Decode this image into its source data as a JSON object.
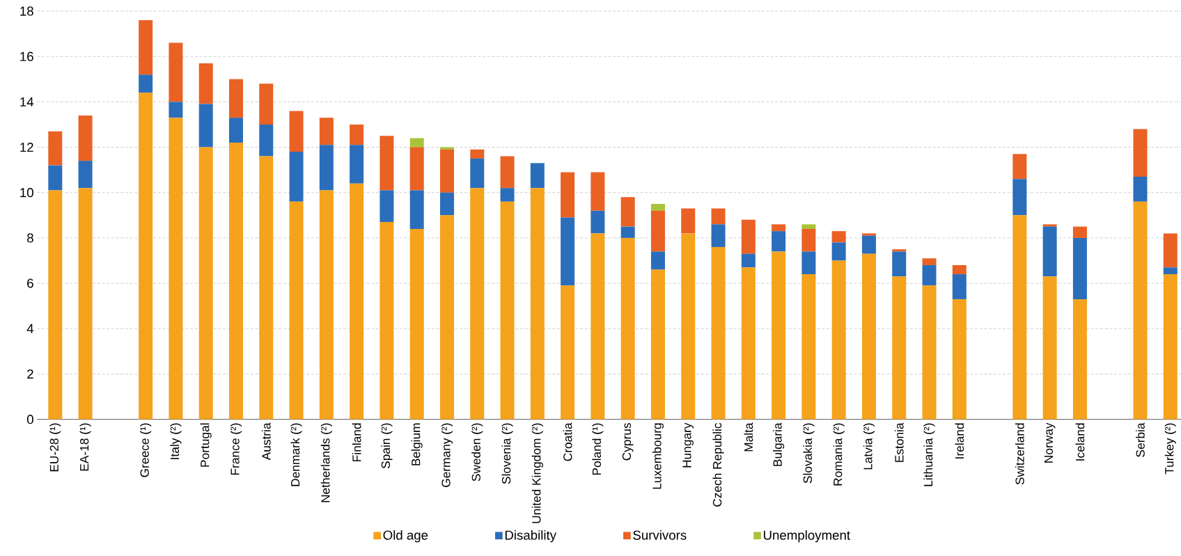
{
  "chart_data": {
    "type": "bar",
    "stacked": true,
    "categories": [
      "EU-28 (¹)",
      "EA-18 (¹)",
      null,
      "Greece (¹)",
      "Italy (²)",
      "Portugal",
      "France (²)",
      "Austria",
      "Denmark (²)",
      "Netherlands (²)",
      "Finland",
      "Spain (²)",
      "Belgium",
      "Germany (²)",
      "Sweden (²)",
      "Slovenia (²)",
      "United Kingdom (²)",
      "Croatia",
      "Poland (¹)",
      "Cyprus",
      "Luxembourg",
      "Hungary",
      "Czech Republic",
      "Malta",
      "Bulgaria",
      "Slovakia (²)",
      "Romania (²)",
      "Latvia (²)",
      "Estonia",
      "Lithuania (²)",
      "Ireland",
      null,
      "Switzerland",
      "Norway",
      "Iceland",
      null,
      "Serbia",
      "Turkey (²)"
    ],
    "series": [
      {
        "name": "Old age",
        "color": "#f5a21c",
        "values": [
          10.1,
          10.2,
          null,
          14.4,
          13.3,
          12.0,
          12.2,
          11.6,
          9.6,
          10.1,
          10.4,
          8.7,
          8.4,
          9.0,
          10.2,
          9.6,
          10.2,
          5.9,
          8.2,
          8.0,
          6.6,
          8.2,
          7.6,
          6.7,
          7.4,
          6.4,
          7.0,
          7.3,
          6.3,
          5.9,
          5.3,
          null,
          9.0,
          6.3,
          5.3,
          null,
          9.6,
          6.4
        ]
      },
      {
        "name": "Disability",
        "color": "#2a6ebb",
        "values": [
          1.1,
          1.2,
          null,
          0.8,
          0.7,
          1.9,
          1.1,
          1.4,
          2.2,
          2.0,
          1.7,
          1.4,
          1.7,
          1.0,
          1.3,
          0.6,
          1.1,
          3.0,
          1.0,
          0.5,
          0.8,
          0.0,
          1.0,
          0.6,
          0.9,
          1.0,
          0.8,
          0.8,
          1.1,
          0.9,
          1.1,
          null,
          1.6,
          2.2,
          2.7,
          null,
          1.1,
          0.3
        ]
      },
      {
        "name": "Survivors",
        "color": "#ea6124",
        "values": [
          1.5,
          2.0,
          null,
          2.4,
          2.6,
          1.8,
          1.7,
          1.8,
          1.8,
          1.2,
          0.9,
          2.4,
          1.9,
          1.9,
          0.4,
          1.4,
          0.0,
          2.0,
          1.7,
          1.3,
          1.8,
          1.1,
          0.7,
          1.5,
          0.3,
          1.0,
          0.5,
          0.1,
          0.1,
          0.3,
          0.4,
          null,
          1.1,
          0.1,
          0.5,
          null,
          2.1,
          1.5
        ]
      },
      {
        "name": "Unemployment",
        "color": "#a8c43a",
        "values": [
          0.0,
          0.0,
          null,
          0.0,
          0.0,
          0.0,
          0.0,
          0.0,
          0.0,
          0.0,
          0.0,
          0.0,
          0.4,
          0.1,
          0.0,
          0.0,
          0.0,
          0.0,
          0.0,
          0.0,
          0.3,
          0.0,
          0.0,
          0.0,
          0.0,
          0.2,
          0.0,
          0.0,
          0.0,
          0.0,
          0.0,
          null,
          0.0,
          0.0,
          0.0,
          null,
          0.0,
          0.0
        ]
      }
    ],
    "ylim": [
      0,
      18
    ],
    "yticks": [
      0,
      2,
      4,
      6,
      8,
      10,
      12,
      14,
      16,
      18
    ],
    "grid": "y",
    "legend": "bottom"
  }
}
